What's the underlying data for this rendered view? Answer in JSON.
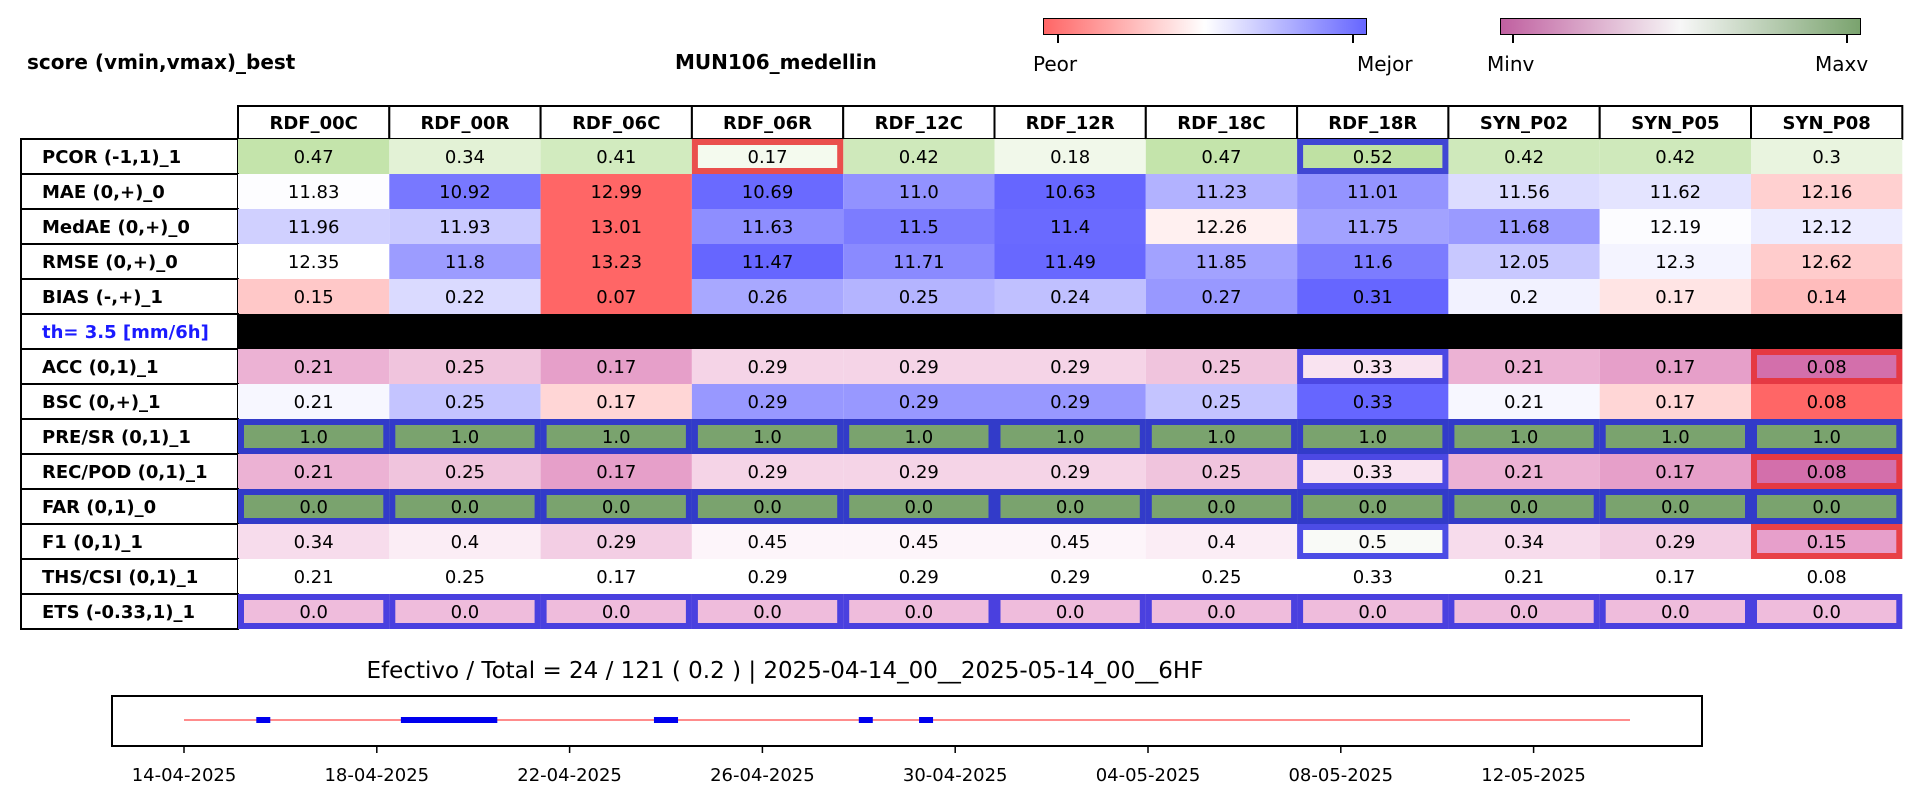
{
  "header": {
    "left_title": "score (vmin,vmax)_best",
    "station": "MUN106_medellin"
  },
  "colorbars": {
    "score": {
      "low_label": "Peor",
      "high_label": "Mejor",
      "low_color": "#ff6666",
      "mid_color": "#ffffff",
      "high_color": "#6666ff"
    },
    "value": {
      "low_label": "Minv",
      "high_label": "Maxv",
      "low_color": "#c060a0",
      "mid_color": "#f7f7f7",
      "high_color": "#7aa36e"
    }
  },
  "colors": {
    "best_frame": "#2020e0",
    "worst_frame": "#e83030",
    "threshold_band": "#000000",
    "threshold_text": "#1a1aff",
    "timeline_line": "#ff6666",
    "timeline_segment": "#0000ee"
  },
  "chart_data": [
    {
      "type": "heatmap",
      "columns": [
        "RDF_00C",
        "RDF_00R",
        "RDF_06C",
        "RDF_06R",
        "RDF_12C",
        "RDF_12R",
        "RDF_18C",
        "RDF_18R",
        "SYN_P02",
        "SYN_P05",
        "SYN_P08"
      ],
      "rows": [
        {
          "label": "PCOR (-1,1)_1",
          "values": [
            "0.47",
            "0.34",
            "0.41",
            "0.17",
            "0.42",
            "0.18",
            "0.47",
            "0.52",
            "0.42",
            "0.42",
            "0.3"
          ],
          "colors": [
            "#c4e4ab",
            "#e3f2d6",
            "#d2ebbf",
            "#f4faee",
            "#cfe9bb",
            "#f1f8ea",
            "#c4e4ab",
            "#bfe1a3",
            "#cfe9bb",
            "#cfe9bb",
            "#e9f4df"
          ],
          "best": [
            7
          ],
          "worst": [
            3
          ]
        },
        {
          "label": "MAE (0,+)_0",
          "values": [
            "11.83",
            "10.92",
            "12.99",
            "10.69",
            "11.0",
            "10.63",
            "11.23",
            "11.01",
            "11.56",
            "11.62",
            "12.16"
          ],
          "colors": [
            "#fdfdff",
            "#7878ff",
            "#ff6666",
            "#6a6aff",
            "#9292ff",
            "#6666ff",
            "#b2b2ff",
            "#9494ff",
            "#dcdcff",
            "#e4e4ff",
            "#ffd0d0"
          ],
          "best": [],
          "worst": []
        },
        {
          "label": "MedAE (0,+)_0",
          "values": [
            "11.96",
            "11.93",
            "13.01",
            "11.63",
            "11.5",
            "11.4",
            "12.26",
            "11.75",
            "11.68",
            "12.19",
            "12.12"
          ],
          "colors": [
            "#d0d0ff",
            "#cacaff",
            "#ff6666",
            "#8e8eff",
            "#7c7cff",
            "#6a6aff",
            "#fff0f0",
            "#a2a2ff",
            "#9a9aff",
            "#fcfcff",
            "#ececff"
          ],
          "best": [],
          "worst": []
        },
        {
          "label": "RMSE (0,+)_0",
          "values": [
            "12.35",
            "11.8",
            "13.23",
            "11.47",
            "11.71",
            "11.49",
            "11.85",
            "11.6",
            "12.05",
            "12.3",
            "12.62"
          ],
          "colors": [
            "#ffffff",
            "#9c9cff",
            "#ff6666",
            "#6666ff",
            "#8a8aff",
            "#6868ff",
            "#a2a2ff",
            "#7c7cff",
            "#c8c8ff",
            "#f4f4ff",
            "#ffcccc"
          ],
          "best": [],
          "worst": []
        },
        {
          "label": "BIAS (-,+)_1",
          "values": [
            "0.15",
            "0.22",
            "0.07",
            "0.26",
            "0.25",
            "0.24",
            "0.27",
            "0.31",
            "0.2",
            "0.17",
            "0.14"
          ],
          "colors": [
            "#ffc8c8",
            "#dadaff",
            "#ff6666",
            "#a8a8ff",
            "#b4b4ff",
            "#c0c0ff",
            "#9898ff",
            "#6666ff",
            "#f2f2ff",
            "#ffe4e4",
            "#ffbcbc"
          ],
          "best": [],
          "worst": []
        },
        {
          "label": "th= 3.5 [mm/6h]",
          "threshold": true,
          "values": [],
          "colors": [],
          "best": [],
          "worst": []
        },
        {
          "label": "ACC (0,1)_1",
          "values": [
            "0.21",
            "0.25",
            "0.17",
            "0.29",
            "0.29",
            "0.29",
            "0.25",
            "0.33",
            "0.21",
            "0.17",
            "0.08"
          ],
          "colors": [
            "#ecb2d4",
            "#f0c4dd",
            "#e69fc9",
            "#f5d4e7",
            "#f5d4e7",
            "#f5d4e7",
            "#f0c4dd",
            "#f9e3f0",
            "#ecb2d4",
            "#e69fc9",
            "#d36fab"
          ],
          "best": [
            7
          ],
          "worst": [
            10
          ]
        },
        {
          "label": "BSC (0,+)_1",
          "values": [
            "0.21",
            "0.25",
            "0.17",
            "0.29",
            "0.29",
            "0.29",
            "0.25",
            "0.33",
            "0.21",
            "0.17",
            "0.08"
          ],
          "colors": [
            "#f7f7ff",
            "#c4c4ff",
            "#ffd6d6",
            "#9898ff",
            "#9898ff",
            "#9898ff",
            "#c4c4ff",
            "#6666ff",
            "#f7f7ff",
            "#ffd6d6",
            "#ff6666"
          ],
          "best": [],
          "worst": []
        },
        {
          "label": "PRE/SR (0,1)_1",
          "values": [
            "1.0",
            "1.0",
            "1.0",
            "1.0",
            "1.0",
            "1.0",
            "1.0",
            "1.0",
            "1.0",
            "1.0",
            "1.0"
          ],
          "colors": [
            "#7aa36e",
            "#7aa36e",
            "#7aa36e",
            "#7aa36e",
            "#7aa36e",
            "#7aa36e",
            "#7aa36e",
            "#7aa36e",
            "#7aa36e",
            "#7aa36e",
            "#7aa36e"
          ],
          "best": [
            0,
            1,
            2,
            3,
            4,
            5,
            6,
            7,
            8,
            9,
            10
          ],
          "worst": []
        },
        {
          "label": "REC/POD (0,1)_1",
          "values": [
            "0.21",
            "0.25",
            "0.17",
            "0.29",
            "0.29",
            "0.29",
            "0.25",
            "0.33",
            "0.21",
            "0.17",
            "0.08"
          ],
          "colors": [
            "#ecb2d4",
            "#f0c4dd",
            "#e69fc9",
            "#f5d4e7",
            "#f5d4e7",
            "#f5d4e7",
            "#f0c4dd",
            "#f9e3f0",
            "#ecb2d4",
            "#e69fc9",
            "#d36fab"
          ],
          "best": [
            7
          ],
          "worst": [
            10
          ]
        },
        {
          "label": "FAR (0,1)_0",
          "values": [
            "0.0",
            "0.0",
            "0.0",
            "0.0",
            "0.0",
            "0.0",
            "0.0",
            "0.0",
            "0.0",
            "0.0",
            "0.0"
          ],
          "colors": [
            "#7aa36e",
            "#7aa36e",
            "#7aa36e",
            "#7aa36e",
            "#7aa36e",
            "#7aa36e",
            "#7aa36e",
            "#7aa36e",
            "#7aa36e",
            "#7aa36e",
            "#7aa36e"
          ],
          "best": [
            0,
            1,
            2,
            3,
            4,
            5,
            6,
            7,
            8,
            9,
            10
          ],
          "worst": []
        },
        {
          "label": "F1 (0,1)_1",
          "values": [
            "0.34",
            "0.4",
            "0.29",
            "0.45",
            "0.45",
            "0.45",
            "0.4",
            "0.5",
            "0.34",
            "0.29",
            "0.15"
          ],
          "colors": [
            "#f7dcec",
            "#fbedf5",
            "#f3cee4",
            "#fdf5fa",
            "#fdf5fa",
            "#fdf5fa",
            "#fbedf5",
            "#f9faf7",
            "#f7dcec",
            "#f3cee4",
            "#e79fcb"
          ],
          "best": [
            7
          ],
          "worst": [
            10
          ]
        },
        {
          "label": "THS/CSI (0,1)_1",
          "values": [
            "0.21",
            "0.25",
            "0.17",
            "0.29",
            "0.29",
            "0.29",
            "0.25",
            "0.33",
            "0.21",
            "0.17",
            "0.08"
          ],
          "colors": [
            "#ffffff",
            "#ffffff",
            "#ffffff",
            "#ffffff",
            "#ffffff",
            "#ffffff",
            "#ffffff",
            "#ffffff",
            "#ffffff",
            "#ffffff",
            "#ffffff"
          ],
          "best": [],
          "worst": []
        },
        {
          "label": "ETS (-0.33,1)_1",
          "values": [
            "0.0",
            "0.0",
            "0.0",
            "0.0",
            "0.0",
            "0.0",
            "0.0",
            "0.0",
            "0.0",
            "0.0",
            "0.0"
          ],
          "colors": [
            "#efbcdc",
            "#efbcdc",
            "#efbcdc",
            "#efbcdc",
            "#efbcdc",
            "#efbcdc",
            "#efbcdc",
            "#efbcdc",
            "#efbcdc",
            "#efbcdc",
            "#efbcdc"
          ],
          "best": [
            0,
            1,
            2,
            3,
            4,
            5,
            6,
            7,
            8,
            9,
            10
          ],
          "worst": []
        }
      ]
    },
    {
      "type": "timeline",
      "title": "Efectivo / Total  =  24 / 121 ( 0.2 ) | 2025-04-14_00__2025-05-14_00__6HF",
      "x_range": [
        "2025-04-14",
        "2025-05-14"
      ],
      "tick_labels": [
        "14-04-2025",
        "18-04-2025",
        "22-04-2025",
        "26-04-2025",
        "30-04-2025",
        "04-05-2025",
        "08-05-2025",
        "12-05-2025"
      ],
      "tick_dates": [
        "2025-04-14",
        "2025-04-18",
        "2025-04-22",
        "2025-04-26",
        "2025-04-30",
        "2025-05-04",
        "2025-05-08",
        "2025-05-12"
      ],
      "effective_segments": [
        [
          "2025-04-15T12:00",
          "2025-04-15T18:00"
        ],
        [
          "2025-04-18T12:00",
          "2025-04-20T12:00"
        ],
        [
          "2025-04-23T18:00",
          "2025-04-24T06:00"
        ],
        [
          "2025-04-28T00:00",
          "2025-04-28T06:00"
        ],
        [
          "2025-04-29T06:00",
          "2025-04-29T12:00"
        ]
      ]
    }
  ]
}
